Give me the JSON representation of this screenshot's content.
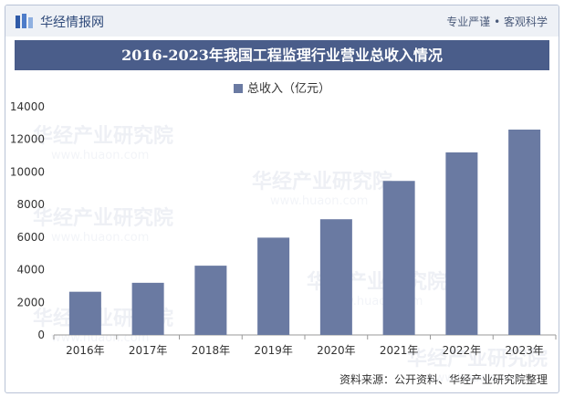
{
  "header": {
    "brand": "华经情报网",
    "slogan": "专业严谨 • 客观科学"
  },
  "title": "2016-2023年我国工程监理行业营业总收入情况",
  "watermark": [
    "华经产业研究院",
    "www.huaon.com"
  ],
  "chart_data": {
    "type": "bar",
    "categories": [
      "2016年",
      "2017年",
      "2018年",
      "2019年",
      "2020年",
      "2021年",
      "2022年",
      "2023年"
    ],
    "series": [
      {
        "name": "总收入（亿元）",
        "values": [
          2650,
          3200,
          4250,
          5970,
          7100,
          9450,
          11200,
          12600
        ]
      }
    ],
    "ylim": [
      0,
      14000
    ],
    "yticks": [
      0,
      2000,
      4000,
      6000,
      8000,
      10000,
      12000,
      14000
    ],
    "grid": false,
    "legend": "top-center",
    "bar_color": "#6a7aa2"
  },
  "source": "资料来源：公开资料、华经产业研究院整理"
}
